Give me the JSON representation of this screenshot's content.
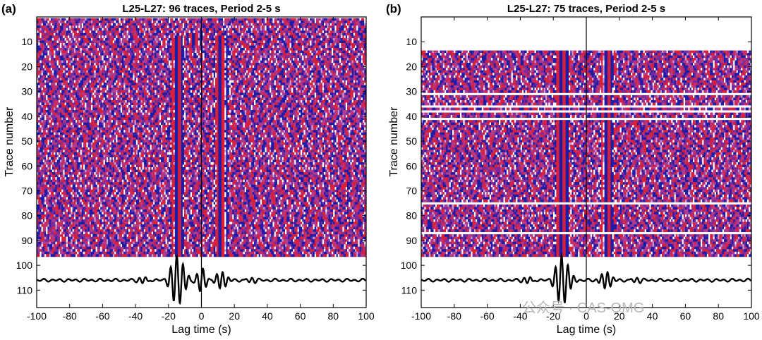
{
  "watermark": "公众号 · CAS-OMG",
  "colors": {
    "positive": "#d8203a",
    "negative": "#1c1ca8",
    "background": "#ffffff",
    "stack_line": "#000000"
  },
  "chart_data": [
    {
      "type": "heatmap",
      "panel_label": "(a)",
      "title": "L25-L27: 96 traces, Period 2-5 s",
      "xlabel": "Lag time (s)",
      "ylabel": "Trace number",
      "xlim": [
        -100,
        100
      ],
      "ylim": [
        117,
        0
      ],
      "x_ticks": [
        -100,
        -80,
        -60,
        -40,
        -20,
        0,
        20,
        40,
        60,
        80,
        100
      ],
      "y_ticks": [
        10,
        20,
        30,
        40,
        50,
        60,
        70,
        80,
        90,
        100,
        110
      ],
      "trace_count": 96,
      "first_trace": 1,
      "last_trace": 96,
      "blank_traces": [],
      "coherent_arrivals": [
        {
          "lag": -15,
          "from_trace": 8,
          "to_trace": 96
        },
        {
          "lag": 12,
          "from_trace": 8,
          "to_trace": 96
        },
        {
          "lag": -4,
          "from_trace": 7,
          "to_trace": 11
        }
      ],
      "stack_waveform": {
        "baseline_trace": 106,
        "peaks": [
          {
            "lag": -16,
            "amplitude": 1.0
          },
          {
            "lag": -12,
            "amplitude": 0.75
          },
          {
            "lag": 0,
            "amplitude": 0.55
          },
          {
            "lag": 12,
            "amplitude": 0.5
          },
          {
            "lag": -35,
            "amplitude": 0.15
          },
          {
            "lag": 30,
            "amplitude": 0.12
          }
        ]
      },
      "vertical_line_at": 0
    },
    {
      "type": "heatmap",
      "panel_label": "(b)",
      "title": "L25-L27:  75 traces, Period 2-5 s",
      "xlabel": "Lag time (s)",
      "ylabel": "Trace number",
      "xlim": [
        -100,
        100
      ],
      "ylim": [
        117,
        0
      ],
      "x_ticks": [
        -100,
        -80,
        -60,
        -40,
        -20,
        0,
        20,
        40,
        60,
        80,
        100
      ],
      "y_ticks": [
        10,
        20,
        30,
        40,
        50,
        60,
        70,
        80,
        90,
        100,
        110
      ],
      "trace_count": 75,
      "first_trace": 14,
      "last_trace": 96,
      "blank_traces": [
        31,
        36,
        38,
        41,
        75,
        87
      ],
      "coherent_arrivals": [
        {
          "lag": -15,
          "from_trace": 14,
          "to_trace": 96
        },
        {
          "lag": 12,
          "from_trace": 14,
          "to_trace": 96
        }
      ],
      "stack_waveform": {
        "baseline_trace": 106,
        "peaks": [
          {
            "lag": -16,
            "amplitude": 1.0
          },
          {
            "lag": -12,
            "amplitude": 0.7
          },
          {
            "lag": 12,
            "amplitude": 0.5
          },
          {
            "lag": -35,
            "amplitude": 0.15
          },
          {
            "lag": 30,
            "amplitude": 0.12
          }
        ]
      },
      "vertical_line_at": 0
    }
  ]
}
